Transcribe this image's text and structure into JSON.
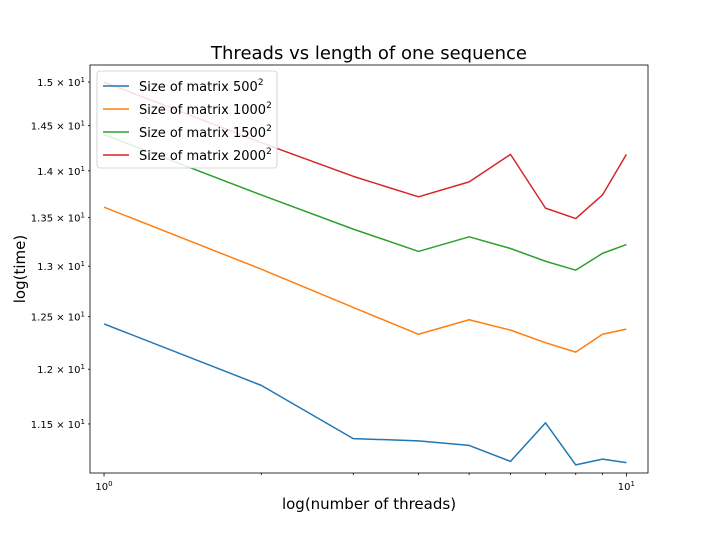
{
  "chart_data": {
    "type": "line",
    "title": "Threads vs length of one sequence",
    "xlabel": "log(number of threads)",
    "ylabel": "log(time)",
    "xscale": "log",
    "yscale": "log",
    "xlim": [
      0.94,
      11.0
    ],
    "ylim": [
      11.07,
      15.2
    ],
    "x_ticks": [
      {
        "value": 1,
        "base": "10",
        "exp": "0"
      },
      {
        "value": 10,
        "base": "10",
        "exp": "1"
      }
    ],
    "y_ticks": [
      {
        "value": 11.5,
        "mant": "1.15",
        "exp": "1"
      },
      {
        "value": 12.0,
        "mant": "1.2",
        "exp": "1"
      },
      {
        "value": 12.5,
        "mant": "1.25",
        "exp": "1"
      },
      {
        "value": 13.0,
        "mant": "1.3",
        "exp": "1"
      },
      {
        "value": 13.5,
        "mant": "1.35",
        "exp": "1"
      },
      {
        "value": 14.0,
        "mant": "1.4",
        "exp": "1"
      },
      {
        "value": 14.5,
        "mant": "1.45",
        "exp": "1"
      },
      {
        "value": 15.0,
        "mant": "1.5",
        "exp": "1"
      }
    ],
    "x": [
      1,
      2,
      3,
      4,
      5,
      6,
      7,
      8,
      9,
      10
    ],
    "series": [
      {
        "base": "Size of matrix 500",
        "sup": "2",
        "color": "#1f77b4",
        "values": [
          12.43,
          11.85,
          11.37,
          11.35,
          11.31,
          11.17,
          11.51,
          11.14,
          11.19,
          11.16
        ]
      },
      {
        "base": "Size of matrix 1000",
        "sup": "2",
        "color": "#ff7f0e",
        "values": [
          13.61,
          12.97,
          12.59,
          12.33,
          12.47,
          12.37,
          12.25,
          12.16,
          12.33,
          12.38
        ]
      },
      {
        "base": "Size of matrix 1500",
        "sup": "2",
        "color": "#2ca02c",
        "values": [
          14.4,
          13.74,
          13.38,
          13.15,
          13.3,
          13.18,
          13.05,
          12.96,
          13.13,
          13.22
        ]
      },
      {
        "base": "Size of matrix 2000",
        "sup": "2",
        "color": "#d62728",
        "values": [
          15.0,
          14.31,
          13.94,
          13.72,
          13.88,
          14.18,
          13.6,
          13.49,
          13.74,
          14.18
        ]
      }
    ],
    "legend": "top-left",
    "grid": false
  }
}
